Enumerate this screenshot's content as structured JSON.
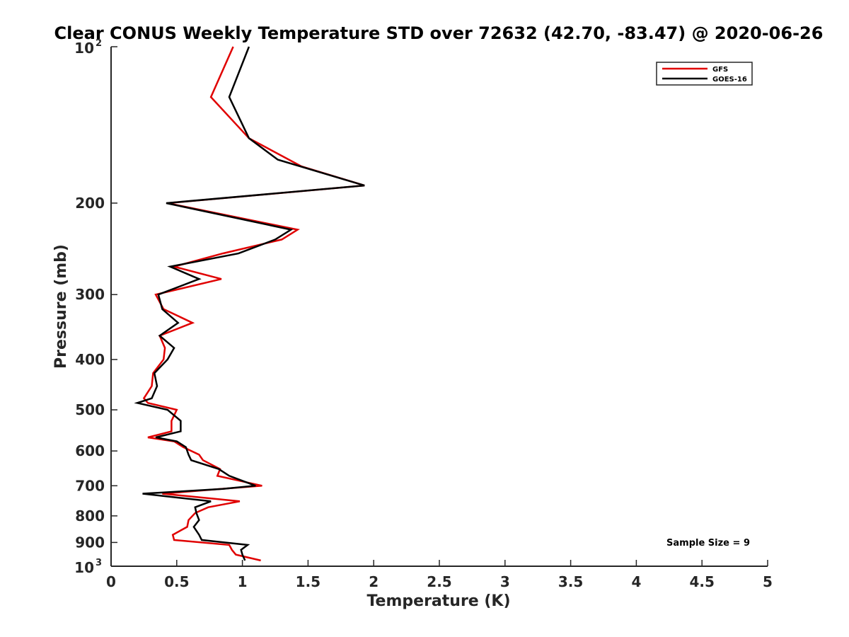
{
  "chart_data": {
    "type": "line",
    "title": "Clear CONUS Weekly Temperature STD over 72632 (42.70, -83.47) @ 2020-06-26",
    "xlabel": "Temperature (K)",
    "ylabel": "Pressure (mb)",
    "xlim": [
      0,
      5
    ],
    "ylim": [
      100,
      1000
    ],
    "yscale": "log",
    "yreversed": true,
    "x_ticks": [
      0,
      0.5,
      1,
      1.5,
      2,
      2.5,
      3,
      3.5,
      4,
      4.5,
      5
    ],
    "x_tick_labels": [
      "0",
      "0.5",
      "1",
      "1.5",
      "2",
      "2.5",
      "3",
      "3.5",
      "4",
      "4.5",
      "5"
    ],
    "y_ticks": [
      200,
      300,
      400,
      500,
      600,
      700,
      800,
      900
    ],
    "y_tick_labels": [
      "200",
      "300",
      "400",
      "500",
      "600",
      "700",
      "800",
      "900"
    ],
    "y_end_labels": [
      {
        "value": 100,
        "base": "10",
        "exp": "2"
      },
      {
        "value": 1000,
        "base": "10",
        "exp": "3"
      }
    ],
    "grid": false,
    "legend_position": "top-right",
    "annotation": "Sample Size = 9",
    "series": [
      {
        "name": "GFS",
        "color": "#e00000",
        "points": [
          [
            0.93,
            100
          ],
          [
            0.76,
            125
          ],
          [
            1.05,
            150
          ],
          [
            1.45,
            170
          ],
          [
            1.93,
            185
          ],
          [
            0.43,
            200
          ],
          [
            1.42,
            225
          ],
          [
            1.3,
            235
          ],
          [
            0.85,
            250
          ],
          [
            0.48,
            265
          ],
          [
            0.84,
            280
          ],
          [
            0.34,
            300
          ],
          [
            0.4,
            320
          ],
          [
            0.62,
            340
          ],
          [
            0.37,
            360
          ],
          [
            0.41,
            380
          ],
          [
            0.4,
            400
          ],
          [
            0.32,
            425
          ],
          [
            0.31,
            450
          ],
          [
            0.25,
            475
          ],
          [
            0.28,
            485
          ],
          [
            0.5,
            500
          ],
          [
            0.46,
            525
          ],
          [
            0.46,
            550
          ],
          [
            0.28,
            565
          ],
          [
            0.48,
            575
          ],
          [
            0.55,
            590
          ],
          [
            0.67,
            610
          ],
          [
            0.7,
            625
          ],
          [
            0.83,
            650
          ],
          [
            0.81,
            670
          ],
          [
            1.15,
            700
          ],
          [
            0.84,
            710
          ],
          [
            0.39,
            725
          ],
          [
            0.98,
            750
          ],
          [
            0.74,
            770
          ],
          [
            0.64,
            790
          ],
          [
            0.59,
            815
          ],
          [
            0.58,
            840
          ],
          [
            0.47,
            870
          ],
          [
            0.48,
            890
          ],
          [
            0.9,
            910
          ],
          [
            0.92,
            930
          ],
          [
            0.95,
            950
          ],
          [
            1.14,
            975
          ]
        ]
      },
      {
        "name": "GOES-16",
        "color": "#000000",
        "points": [
          [
            1.05,
            100
          ],
          [
            0.9,
            125
          ],
          [
            1.05,
            150
          ],
          [
            1.27,
            165
          ],
          [
            1.93,
            185
          ],
          [
            0.42,
            200
          ],
          [
            1.37,
            225
          ],
          [
            1.25,
            235
          ],
          [
            0.97,
            250
          ],
          [
            0.45,
            265
          ],
          [
            0.67,
            280
          ],
          [
            0.36,
            300
          ],
          [
            0.39,
            320
          ],
          [
            0.51,
            340
          ],
          [
            0.37,
            360
          ],
          [
            0.48,
            380
          ],
          [
            0.43,
            400
          ],
          [
            0.33,
            425
          ],
          [
            0.35,
            450
          ],
          [
            0.31,
            475
          ],
          [
            0.2,
            485
          ],
          [
            0.43,
            500
          ],
          [
            0.53,
            525
          ],
          [
            0.53,
            550
          ],
          [
            0.34,
            565
          ],
          [
            0.5,
            575
          ],
          [
            0.57,
            590
          ],
          [
            0.59,
            610
          ],
          [
            0.61,
            625
          ],
          [
            0.82,
            650
          ],
          [
            0.9,
            670
          ],
          [
            1.1,
            700
          ],
          [
            0.85,
            710
          ],
          [
            0.24,
            725
          ],
          [
            0.76,
            750
          ],
          [
            0.64,
            770
          ],
          [
            0.65,
            790
          ],
          [
            0.67,
            815
          ],
          [
            0.63,
            840
          ],
          [
            0.67,
            870
          ],
          [
            0.69,
            890
          ],
          [
            1.04,
            910
          ],
          [
            0.99,
            930
          ],
          [
            1.0,
            950
          ],
          [
            1.02,
            975
          ]
        ]
      }
    ]
  }
}
